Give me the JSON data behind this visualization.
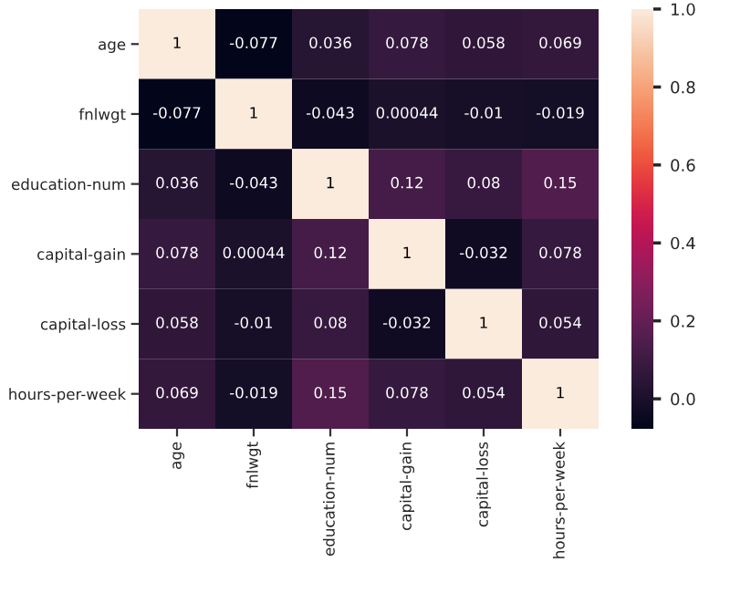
{
  "chart_data": {
    "type": "heatmap",
    "categories": [
      "age",
      "fnlwgt",
      "education-num",
      "capital-gain",
      "capital-loss",
      "hours-per-week"
    ],
    "y_categories": [
      "age",
      "fnlwgt",
      "education-num",
      "capital-gain",
      "capital-loss",
      "hours-per-week"
    ],
    "cells": [
      [
        1,
        -0.077,
        0.036,
        0.078,
        0.058,
        0.069
      ],
      [
        -0.077,
        1,
        -0.043,
        0.00044,
        -0.01,
        -0.019
      ],
      [
        0.036,
        -0.043,
        1,
        0.12,
        0.08,
        0.15
      ],
      [
        0.078,
        0.00044,
        0.12,
        1,
        -0.032,
        0.078
      ],
      [
        0.058,
        -0.01,
        0.08,
        -0.032,
        1,
        0.054
      ],
      [
        0.069,
        -0.019,
        0.15,
        0.078,
        0.054,
        1
      ]
    ],
    "data_labels": true,
    "clim": [
      -0.077,
      1
    ],
    "cticks": [
      {
        "value": 0.0,
        "label": "0.0"
      },
      {
        "value": 0.2,
        "label": "0.2"
      },
      {
        "value": 0.4,
        "label": "0.4"
      },
      {
        "value": 0.6,
        "label": "0.6"
      },
      {
        "value": 0.8,
        "label": "0.8"
      },
      {
        "value": 1.0,
        "label": "1.0"
      }
    ]
  }
}
